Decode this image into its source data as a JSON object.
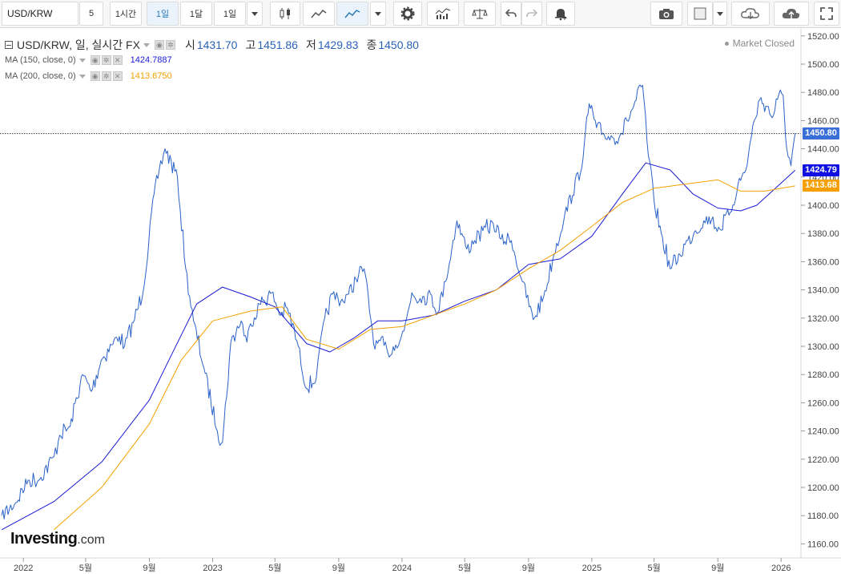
{
  "toolbar": {
    "symbol": "USD/KRW",
    "intervals": [
      "5",
      "1시간",
      "1일",
      "1달",
      "1일"
    ],
    "selected_interval_index": 2
  },
  "legend": {
    "title": "USD/KRW, 일, 실시간 FX",
    "open_label": "시",
    "open": "1431.70",
    "high_label": "고",
    "high": "1451.86",
    "low_label": "저",
    "low": "1429.83",
    "close_label": "종",
    "close": "1450.80",
    "market_status": "Market Closed"
  },
  "indicators": [
    {
      "label": "MA (150, close, 0)",
      "value": "1424.7887",
      "color": "#1a1ad6"
    },
    {
      "label": "MA (200, close, 0)",
      "value": "1413.6750",
      "color": "#f5a000"
    }
  ],
  "price_tags": {
    "last": "1450.80",
    "ma150": "1424.79",
    "ma200": "1413.68"
  },
  "colors": {
    "price": "#2a62c9",
    "ma150": "#1a1ad6",
    "ma200": "#f5a000",
    "last_tag": "#3a6fd8",
    "ma150_tag": "#1010e0",
    "ma200_tag": "#f5a000"
  },
  "logo": {
    "brand": "Investing",
    "suffix": ".com"
  },
  "chart_data": {
    "type": "line",
    "ylim": [
      1150,
      1525
    ],
    "y_ticks": [
      1160,
      1180,
      1200,
      1220,
      1240,
      1260,
      1280,
      1300,
      1320,
      1340,
      1360,
      1380,
      1400,
      1420,
      1440,
      1460,
      1480,
      1500,
      1520
    ],
    "x_range": [
      "2021-11-20",
      "2026-01-30"
    ],
    "x_ticks": [
      {
        "date": "2022-01-01",
        "label": "2022"
      },
      {
        "date": "2022-05-01",
        "label": "5월"
      },
      {
        "date": "2022-09-01",
        "label": "9월"
      },
      {
        "date": "2023-01-01",
        "label": "2023"
      },
      {
        "date": "2023-05-01",
        "label": "5월"
      },
      {
        "date": "2023-09-01",
        "label": "9월"
      },
      {
        "date": "2024-01-01",
        "label": "2024"
      },
      {
        "date": "2024-05-01",
        "label": "5월"
      },
      {
        "date": "2024-09-01",
        "label": "9월"
      },
      {
        "date": "2025-01-01",
        "label": "2025"
      },
      {
        "date": "2025-05-01",
        "label": "5월"
      },
      {
        "date": "2025-09-01",
        "label": "9월"
      },
      {
        "date": "2026-01-01",
        "label": "2026"
      }
    ],
    "last_price_line": 1450.8,
    "series": [
      {
        "name": "USD/KRW",
        "x": [
          "2021-11-20",
          "2021-12-15",
          "2022-01-10",
          "2022-01-30",
          "2022-03-01",
          "2022-03-12",
          "2022-04-01",
          "2022-04-25",
          "2022-05-12",
          "2022-05-31",
          "2022-06-20",
          "2022-07-05",
          "2022-07-15",
          "2022-08-01",
          "2022-08-20",
          "2022-09-05",
          "2022-09-20",
          "2022-10-01",
          "2022-10-25",
          "2022-11-10",
          "2022-11-25",
          "2022-12-15",
          "2023-01-10",
          "2023-01-20",
          "2023-02-05",
          "2023-02-25",
          "2023-03-08",
          "2023-03-15",
          "2023-04-01",
          "2023-04-25",
          "2023-05-12",
          "2023-05-25",
          "2023-06-15",
          "2023-07-01",
          "2023-07-20",
          "2023-08-05",
          "2023-08-20",
          "2023-09-05",
          "2023-09-20",
          "2023-10-04",
          "2023-10-20",
          "2023-11-10",
          "2023-11-20",
          "2023-12-05",
          "2023-12-20",
          "2024-01-05",
          "2024-01-20",
          "2024-02-05",
          "2024-02-25",
          "2024-03-10",
          "2024-03-25",
          "2024-04-16",
          "2024-05-05",
          "2024-05-20",
          "2024-06-05",
          "2024-06-25",
          "2024-07-10",
          "2024-07-30",
          "2024-08-20",
          "2024-09-10",
          "2024-09-30",
          "2024-10-20",
          "2024-11-10",
          "2024-11-25",
          "2024-12-15",
          "2024-12-27",
          "2025-01-10",
          "2025-01-25",
          "2025-02-10",
          "2025-02-25",
          "2025-03-10",
          "2025-03-20",
          "2025-04-09",
          "2025-04-20",
          "2025-05-01",
          "2025-05-15",
          "2025-06-01",
          "2025-06-20",
          "2025-07-05",
          "2025-07-20",
          "2025-08-05",
          "2025-08-20",
          "2025-09-05",
          "2025-09-25",
          "2025-10-10",
          "2025-10-25",
          "2025-11-10",
          "2025-11-21",
          "2025-12-05",
          "2025-12-15",
          "2025-12-25",
          "2026-01-05",
          "2026-01-12",
          "2026-01-20",
          "2026-01-28"
        ],
        "y": [
          1180,
          1188,
          1205,
          1205,
          1222,
          1237,
          1243,
          1280,
          1268,
          1290,
          1301,
          1307,
          1300,
          1317,
          1339,
          1395,
          1425,
          1440,
          1420,
          1355,
          1318,
          1285,
          1240,
          1232,
          1303,
          1318,
          1303,
          1316,
          1330,
          1338,
          1322,
          1327,
          1300,
          1270,
          1278,
          1320,
          1337,
          1332,
          1337,
          1348,
          1355,
          1298,
          1304,
          1295,
          1301,
          1311,
          1338,
          1334,
          1337,
          1324,
          1346,
          1389,
          1369,
          1375,
          1382,
          1387,
          1376,
          1375,
          1346,
          1319,
          1335,
          1365,
          1394,
          1407,
          1433,
          1472,
          1455,
          1450,
          1448,
          1450,
          1460,
          1468,
          1485,
          1435,
          1403,
          1380,
          1355,
          1365,
          1375,
          1382,
          1389,
          1390,
          1383,
          1395,
          1415,
          1425,
          1460,
          1475,
          1470,
          1462,
          1475,
          1478,
          1440,
          1428,
          1450.8
        ]
      },
      {
        "name": "MA (150, close, 0)",
        "x": [
          "2021-11-20",
          "2022-03-01",
          "2022-06-01",
          "2022-09-01",
          "2022-10-15",
          "2022-12-01",
          "2023-01-20",
          "2023-03-15",
          "2023-05-01",
          "2023-07-01",
          "2023-08-15",
          "2023-10-01",
          "2023-11-15",
          "2024-01-01",
          "2024-03-01",
          "2024-05-01",
          "2024-07-01",
          "2024-09-01",
          "2024-11-01",
          "2025-01-01",
          "2025-03-01",
          "2025-04-15",
          "2025-06-01",
          "2025-07-15",
          "2025-09-01",
          "2025-10-15",
          "2025-11-15",
          "2025-12-15",
          "2026-01-28"
        ],
        "y": [
          1170,
          1190,
          1218,
          1262,
          1295,
          1330,
          1342,
          1335,
          1328,
          1302,
          1296,
          1306,
          1318,
          1318,
          1322,
          1332,
          1340,
          1358,
          1362,
          1378,
          1408,
          1430,
          1425,
          1408,
          1398,
          1396,
          1400,
          1410,
          1424.79
        ]
      },
      {
        "name": "MA (200, close, 0)",
        "x": [
          "2022-03-01",
          "2022-06-01",
          "2022-09-01",
          "2022-11-01",
          "2023-01-01",
          "2023-03-15",
          "2023-05-15",
          "2023-07-01",
          "2023-09-01",
          "2023-11-01",
          "2024-01-01",
          "2024-03-01",
          "2024-05-01",
          "2024-07-01",
          "2024-09-01",
          "2024-11-01",
          "2025-01-01",
          "2025-03-01",
          "2025-05-01",
          "2025-07-01",
          "2025-09-01",
          "2025-10-15",
          "2025-12-01",
          "2026-01-28"
        ],
        "y": [
          1170,
          1200,
          1245,
          1290,
          1318,
          1325,
          1328,
          1305,
          1298,
          1312,
          1314,
          1322,
          1330,
          1340,
          1355,
          1368,
          1385,
          1402,
          1412,
          1415,
          1418,
          1410,
          1410,
          1413.68
        ]
      }
    ]
  }
}
